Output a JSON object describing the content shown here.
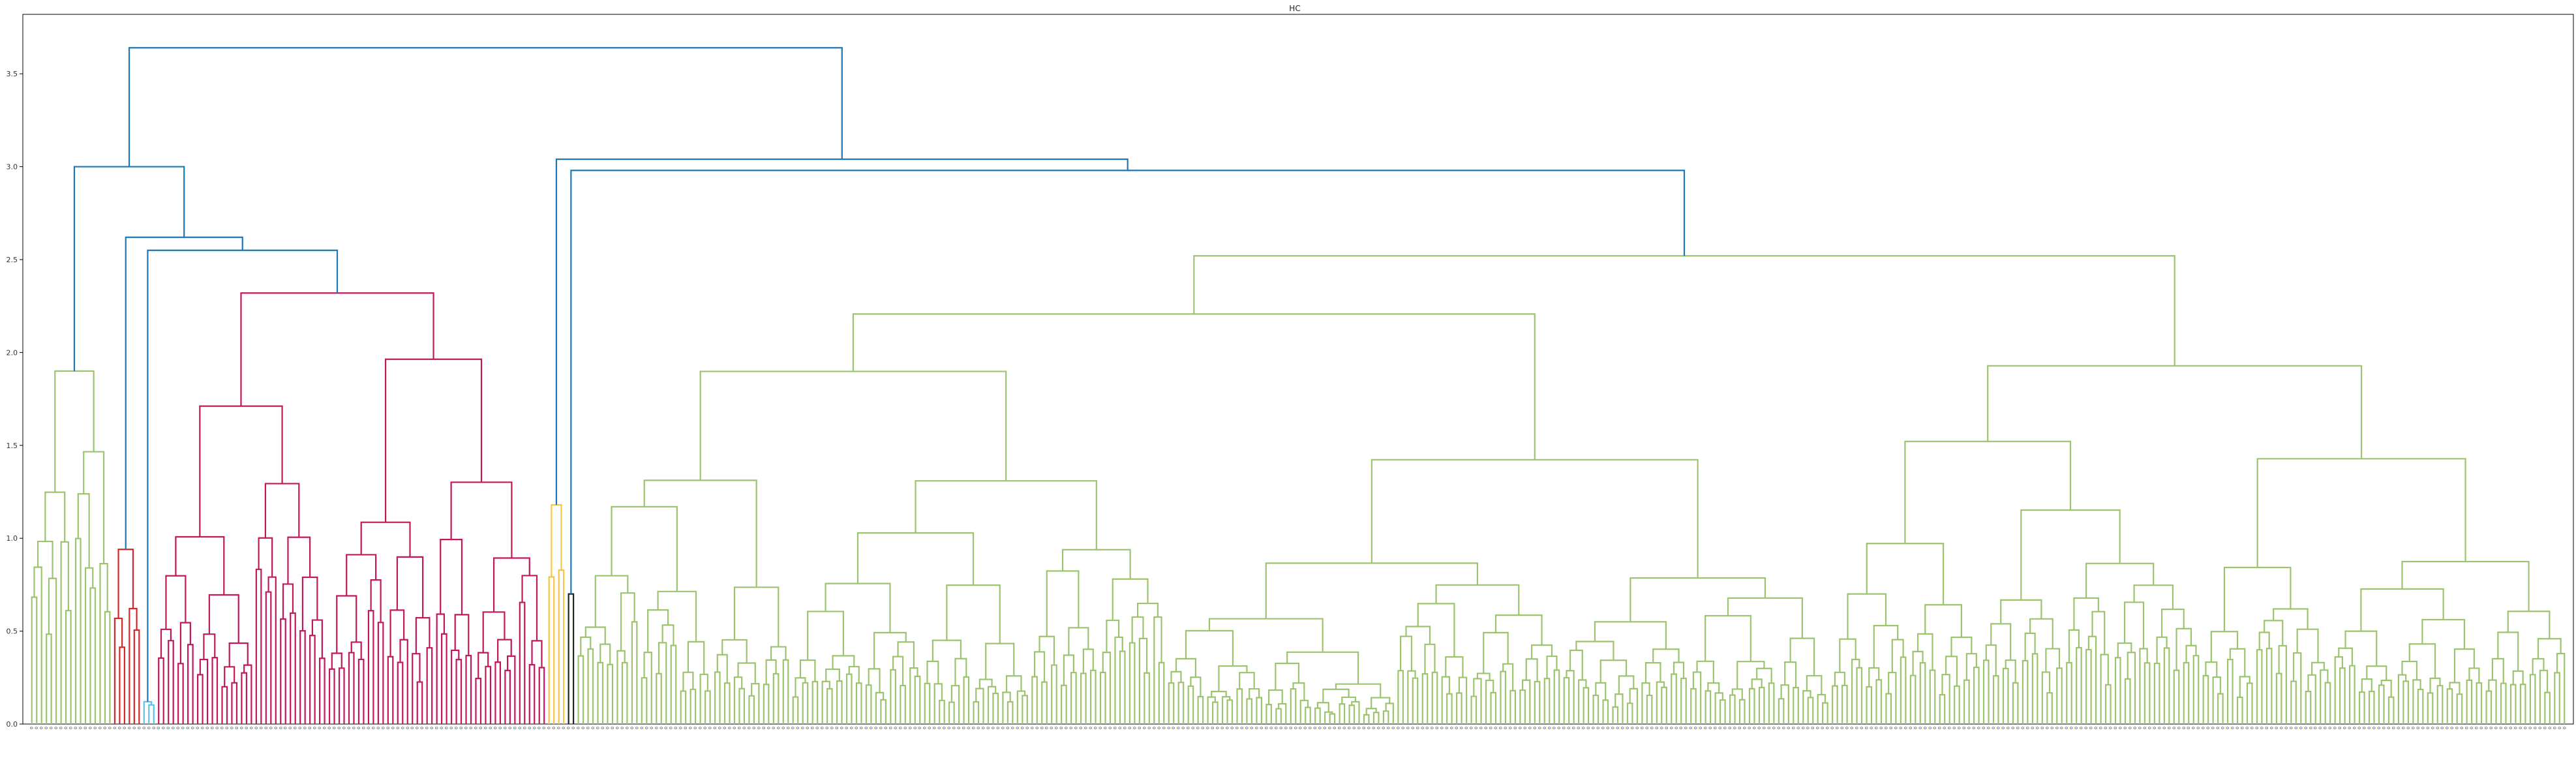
{
  "chart_data": {
    "type": "dendrogram",
    "title": "HC",
    "xlabel": "",
    "ylabel": "",
    "ylim": [
      0,
      3.82
    ],
    "yticks": [
      0.0,
      0.5,
      1.0,
      1.5,
      2.0,
      2.5,
      3.0,
      3.5
    ],
    "ytick_labels": [
      "0.0",
      "0.5",
      "1.0",
      "1.5",
      "2.0",
      "2.5",
      "3.0",
      "3.5"
    ],
    "grid": false,
    "leaf_count": 520,
    "leaf_label": "0",
    "root_height": 3.64,
    "top_merges": [
      {
        "height": 3.64,
        "children": "left subtree (left clusters) + right subtree (large clusters)"
      },
      {
        "height": 3.0,
        "side": "left"
      },
      {
        "height": 3.04,
        "side": "right"
      },
      {
        "height": 2.98,
        "side": "right"
      }
    ],
    "clusters": [
      {
        "color": "#9CC46F",
        "leaf_range": [
          0,
          16
        ],
        "max_height": 1.9
      },
      {
        "color": "#D62728",
        "leaf_range": [
          17,
          22
        ],
        "max_height": 0.94
      },
      {
        "color": "#5BC0EB",
        "leaf_range": [
          23,
          25
        ],
        "max_height": 0.12
      },
      {
        "color": "#C2185B",
        "leaf_range": [
          26,
          105
        ],
        "max_height": 2.32
      },
      {
        "color": "#F2C744",
        "leaf_range": [
          106,
          109
        ],
        "max_height": 1.18
      },
      {
        "color": "#222222",
        "leaf_range": [
          110,
          111
        ],
        "max_height": 0.7
      },
      {
        "color": "#9CC46F",
        "leaf_range": [
          112,
          519
        ],
        "max_height": 2.52
      }
    ],
    "above_threshold_color": "#1f77b4"
  }
}
